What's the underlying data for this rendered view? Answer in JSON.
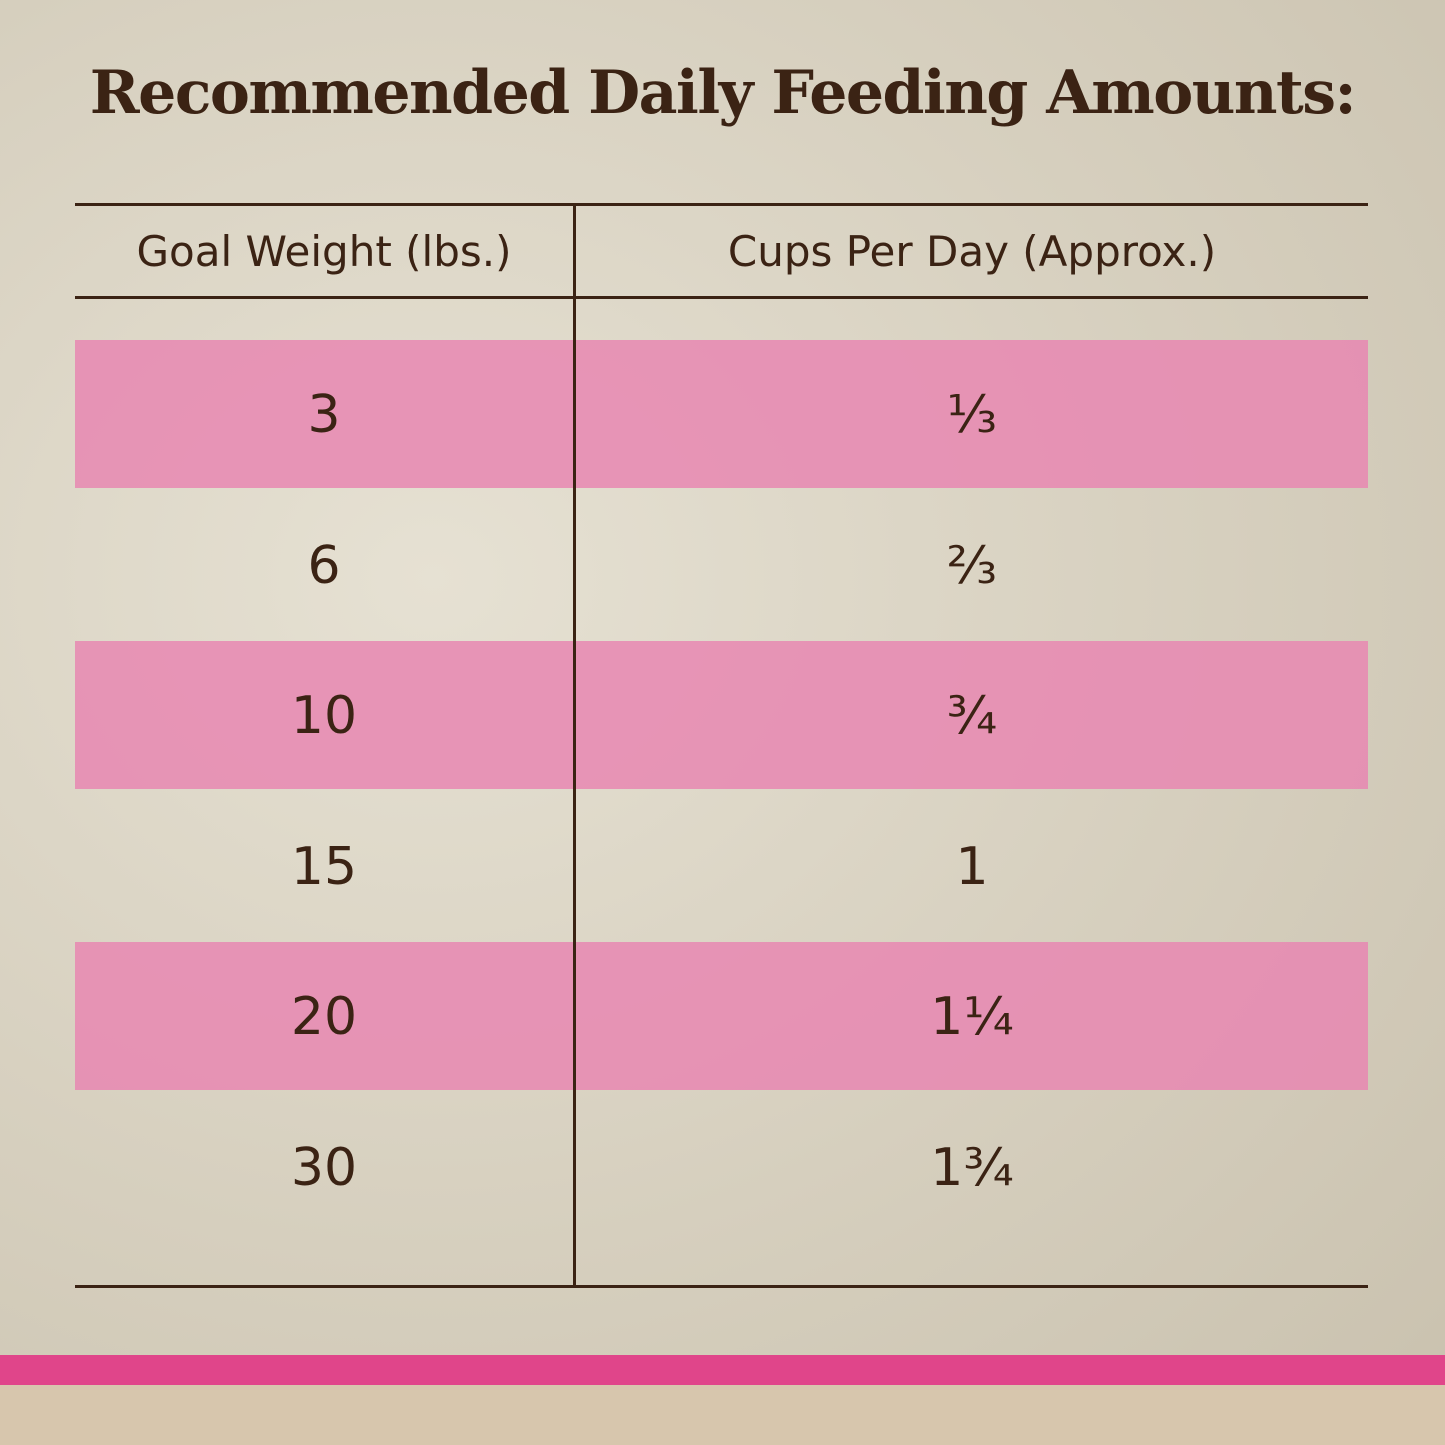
{
  "title": "Recommended Daily Feeding Amounts:",
  "table": {
    "header": [
      "Goal Weight (lbs.)",
      "Cups Per Day (Approx.)"
    ],
    "rows": [
      [
        3,
        "⅓"
      ],
      [
        6,
        "⅔"
      ],
      [
        10,
        "¾"
      ],
      [
        15,
        "1"
      ],
      [
        20,
        "1¼"
      ],
      [
        30,
        "1¾"
      ]
    ]
  }
}
